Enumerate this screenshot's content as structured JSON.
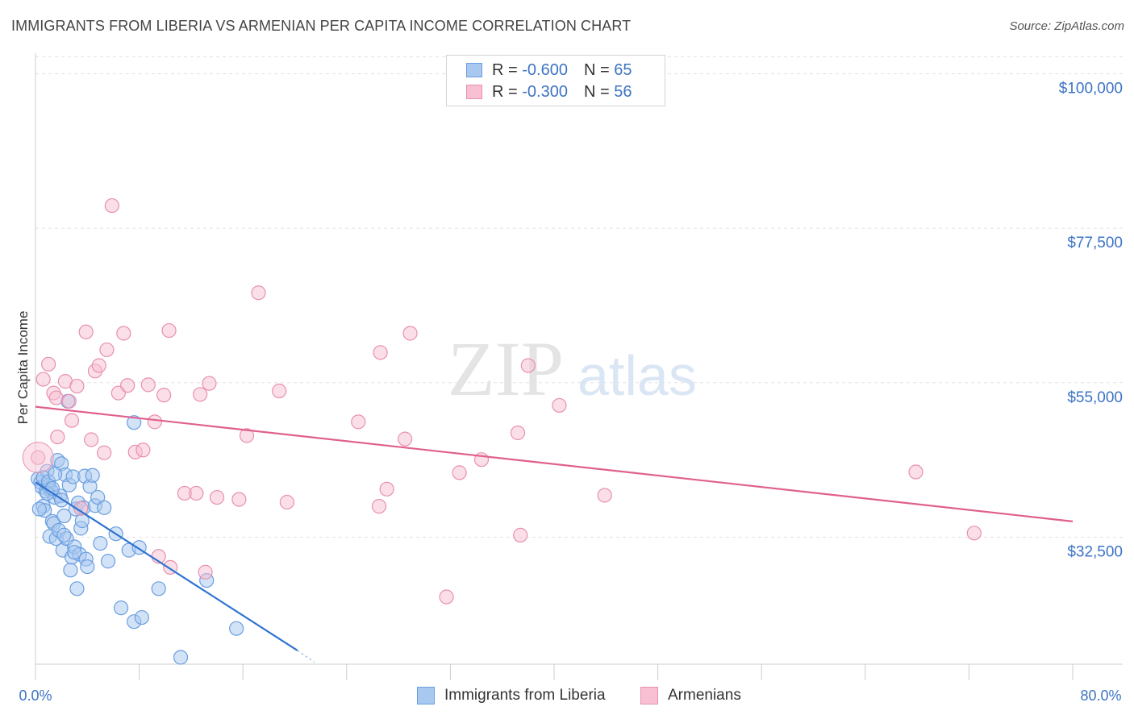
{
  "header": {
    "title": "IMMIGRANTS FROM LIBERIA VS ARMENIAN PER CAPITA INCOME CORRELATION CHART",
    "source": "Source: ZipAtlas.com"
  },
  "watermark": {
    "zip": "ZIP",
    "atlas": "atlas"
  },
  "legend": {
    "rows": [
      {
        "r_label": "R =",
        "r_value": "-0.600",
        "n_label": "N =",
        "n_value": "65",
        "color": "#a8c8f0",
        "border": "#6a9ee0"
      },
      {
        "r_label": "R =",
        "r_value": "-0.300",
        "n_label": "N =",
        "n_value": "56",
        "color": "#f8c0d2",
        "border": "#e890ae"
      }
    ]
  },
  "bottom_legend": {
    "series1": "Immigrants from Liberia",
    "series2": "Armenians"
  },
  "chart_data": {
    "type": "scatter",
    "title": "IMMIGRANTS FROM LIBERIA VS ARMENIAN PER CAPITA INCOME CORRELATION CHART",
    "xlabel": "",
    "ylabel": "Per Capita Income",
    "xlim": [
      0,
      80
    ],
    "ylim": [
      14000,
      103000
    ],
    "x_tick_labels": [
      "0.0%",
      "80.0%"
    ],
    "y_ticks": [
      {
        "value": 100000,
        "label": "$100,000"
      },
      {
        "value": 77500,
        "label": "$77,500"
      },
      {
        "value": 55000,
        "label": "$55,000"
      },
      {
        "value": 32500,
        "label": "$32,500"
      }
    ],
    "series": [
      {
        "name": "Immigrants from Liberia",
        "color": "#6a9ee0",
        "fill": "#a8c8f0",
        "r": -0.6,
        "n": 65,
        "trend": {
          "x": [
            0,
            20.2
          ],
          "y": [
            40500,
            16000
          ],
          "dash_to": [
            21.5,
            14300
          ]
        },
        "points": [
          [
            0.2,
            41000
          ],
          [
            0.4,
            40500
          ],
          [
            0.5,
            39800
          ],
          [
            0.6,
            37000
          ],
          [
            0.7,
            36400
          ],
          [
            0.8,
            39200
          ],
          [
            0.9,
            42100
          ],
          [
            1.0,
            40000
          ],
          [
            1.1,
            32600
          ],
          [
            1.2,
            39300
          ],
          [
            1.3,
            34800
          ],
          [
            1.4,
            34500
          ],
          [
            1.5,
            38300
          ],
          [
            1.6,
            32300
          ],
          [
            1.7,
            43700
          ],
          [
            1.8,
            33500
          ],
          [
            1.9,
            38500
          ],
          [
            2.0,
            43200
          ],
          [
            2.1,
            30600
          ],
          [
            2.2,
            35600
          ],
          [
            2.3,
            41600
          ],
          [
            2.4,
            32300
          ],
          [
            2.5,
            52300
          ],
          [
            2.6,
            40100
          ],
          [
            2.7,
            27700
          ],
          [
            2.8,
            29600
          ],
          [
            2.9,
            41300
          ],
          [
            3.0,
            31100
          ],
          [
            3.1,
            36600
          ],
          [
            3.2,
            25000
          ],
          [
            3.3,
            37500
          ],
          [
            3.4,
            30000
          ],
          [
            3.5,
            33800
          ],
          [
            3.6,
            34900
          ],
          [
            3.7,
            36800
          ],
          [
            3.8,
            41400
          ],
          [
            3.9,
            29300
          ],
          [
            4.0,
            28200
          ],
          [
            4.2,
            39900
          ],
          [
            4.4,
            41500
          ],
          [
            4.6,
            37100
          ],
          [
            4.8,
            38300
          ],
          [
            5.0,
            31600
          ],
          [
            5.3,
            36800
          ],
          [
            5.6,
            29000
          ],
          [
            6.2,
            33000
          ],
          [
            6.6,
            22200
          ],
          [
            7.2,
            30600
          ],
          [
            7.6,
            20200
          ],
          [
            8.0,
            31000
          ],
          [
            8.2,
            20800
          ],
          [
            7.6,
            49200
          ],
          [
            9.5,
            25000
          ],
          [
            11.2,
            15000
          ],
          [
            13.2,
            26200
          ],
          [
            15.5,
            19200
          ],
          [
            0.3,
            36600
          ],
          [
            0.6,
            41200
          ],
          [
            1.0,
            40600
          ],
          [
            1.5,
            41700
          ],
          [
            0.9,
            38900
          ],
          [
            2.2,
            32800
          ],
          [
            3.0,
            30300
          ],
          [
            2.0,
            37900
          ],
          [
            1.3,
            39600
          ]
        ]
      },
      {
        "name": "Armenians",
        "color": "#e890ae",
        "fill": "#f8c0d2",
        "r": -0.3,
        "n": 56,
        "trend": {
          "x": [
            0,
            80
          ],
          "y": [
            51500,
            34800
          ]
        },
        "points": [
          [
            0.2,
            44100
          ],
          [
            0.6,
            55500
          ],
          [
            1.0,
            57700
          ],
          [
            1.4,
            53500
          ],
          [
            1.6,
            52800
          ],
          [
            1.7,
            47100
          ],
          [
            2.3,
            55200
          ],
          [
            2.6,
            52300
          ],
          [
            2.8,
            49500
          ],
          [
            3.2,
            54500
          ],
          [
            3.5,
            36700
          ],
          [
            3.9,
            62400
          ],
          [
            4.3,
            46700
          ],
          [
            4.6,
            56700
          ],
          [
            4.9,
            57500
          ],
          [
            5.3,
            44800
          ],
          [
            5.9,
            80800
          ],
          [
            5.5,
            59800
          ],
          [
            6.4,
            53500
          ],
          [
            6.8,
            62200
          ],
          [
            7.1,
            54600
          ],
          [
            7.7,
            44900
          ],
          [
            8.3,
            45200
          ],
          [
            8.7,
            54700
          ],
          [
            9.2,
            49300
          ],
          [
            9.5,
            29700
          ],
          [
            9.9,
            53200
          ],
          [
            10.4,
            28100
          ],
          [
            10.3,
            62600
          ],
          [
            11.5,
            38900
          ],
          [
            12.4,
            38900
          ],
          [
            12.7,
            53300
          ],
          [
            13.1,
            27400
          ],
          [
            13.4,
            54900
          ],
          [
            14.0,
            38300
          ],
          [
            15.7,
            38000
          ],
          [
            16.3,
            47300
          ],
          [
            17.2,
            68100
          ],
          [
            18.8,
            53800
          ],
          [
            19.4,
            37600
          ],
          [
            24.9,
            49300
          ],
          [
            26.6,
            59400
          ],
          [
            26.5,
            37000
          ],
          [
            27.1,
            39500
          ],
          [
            28.5,
            46800
          ],
          [
            28.9,
            62200
          ],
          [
            31.7,
            23800
          ],
          [
            32.7,
            41900
          ],
          [
            34.4,
            43800
          ],
          [
            37.2,
            47700
          ],
          [
            37.4,
            32800
          ],
          [
            38.0,
            57500
          ],
          [
            40.4,
            51700
          ],
          [
            43.9,
            38600
          ],
          [
            67.9,
            42000
          ],
          [
            72.4,
            33100
          ]
        ]
      }
    ]
  }
}
